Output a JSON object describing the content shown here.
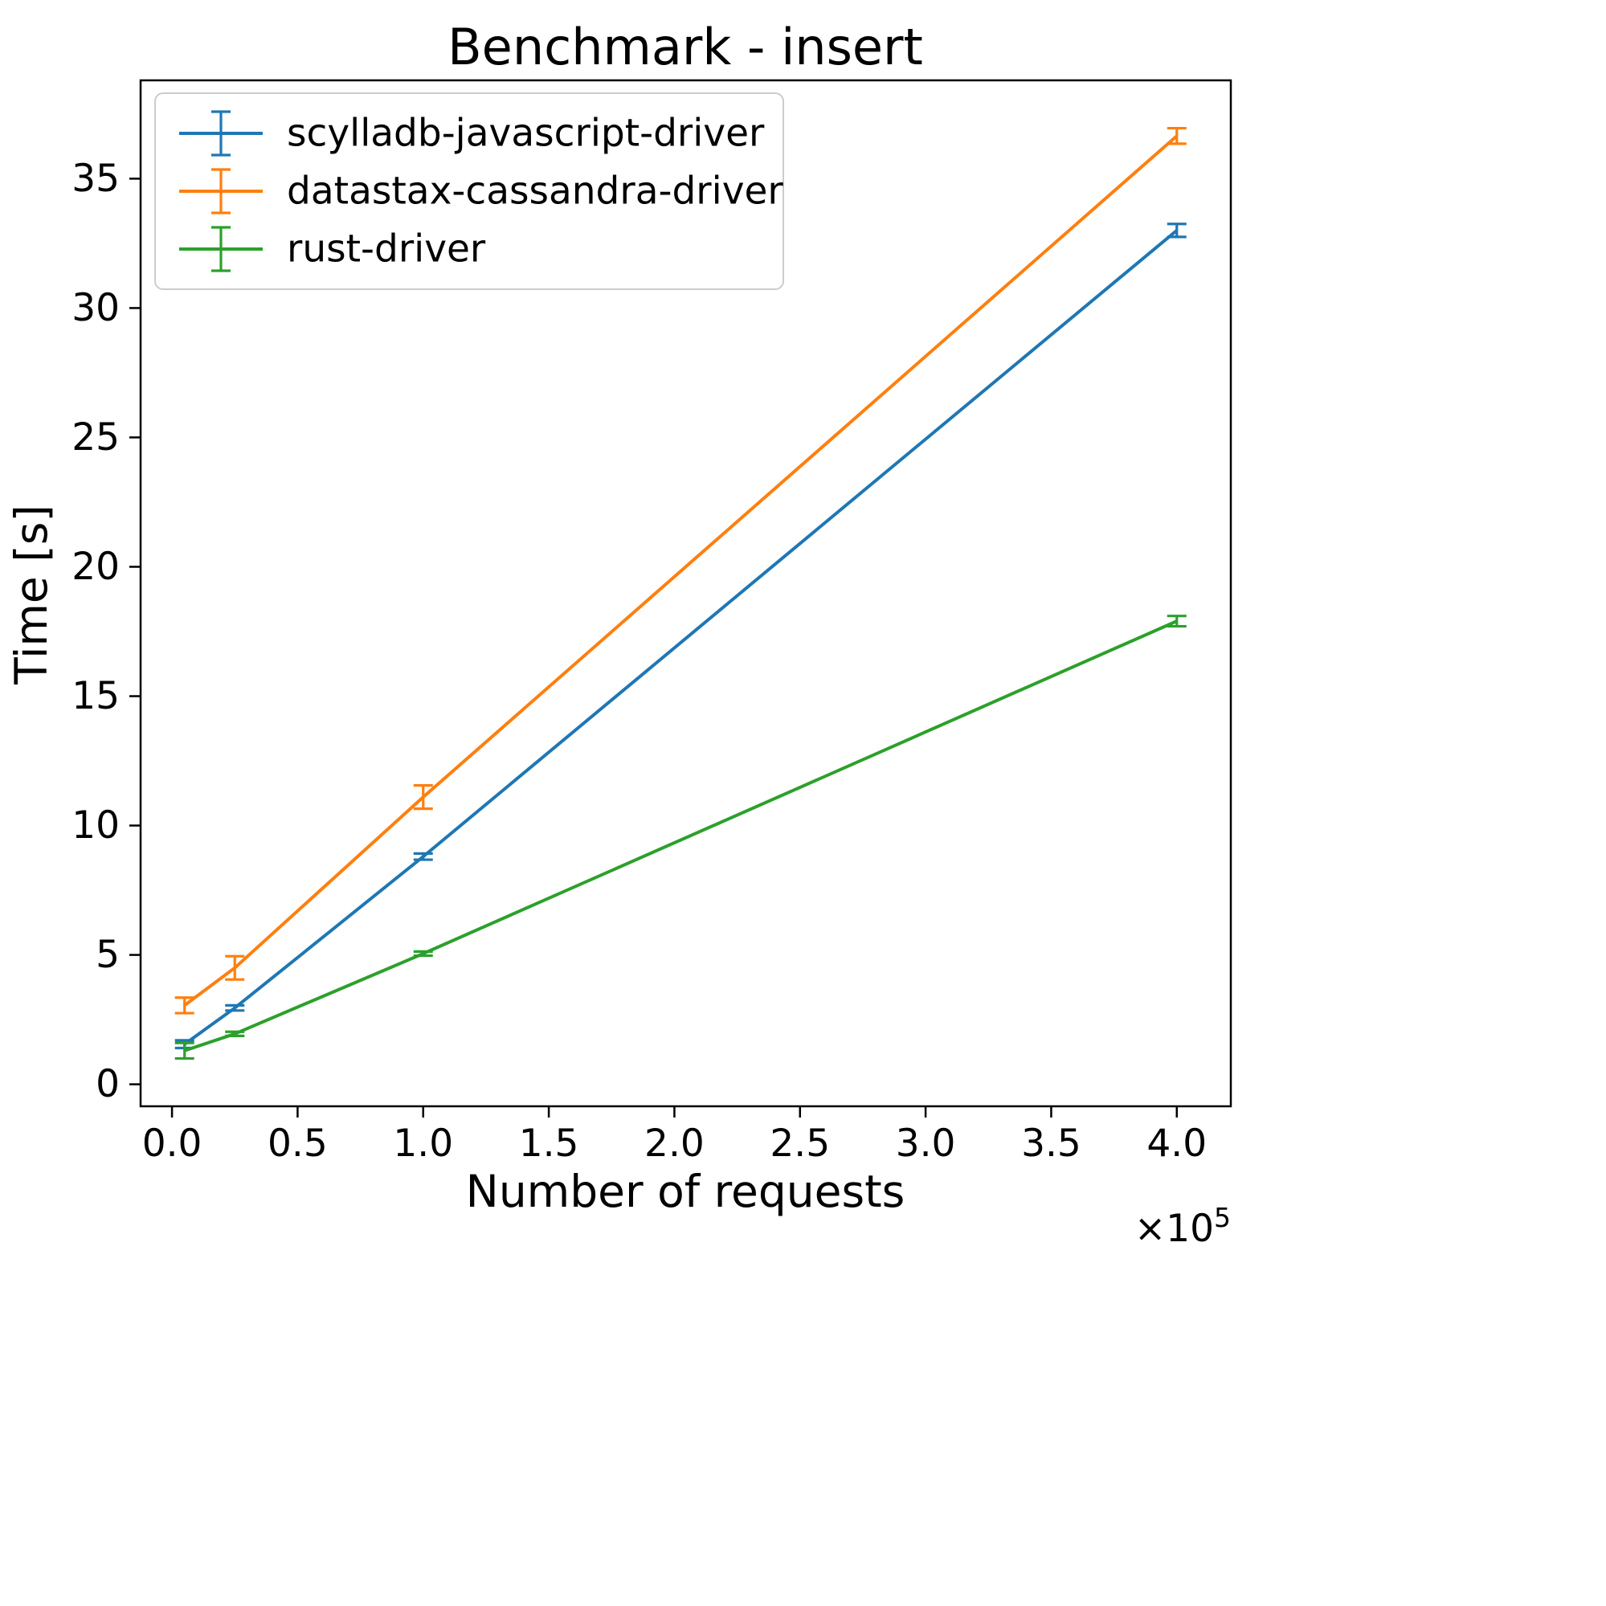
{
  "chart_data": {
    "type": "line",
    "title": "Benchmark - insert",
    "xlabel": "Number of requests",
    "ylabel": "Time [s]",
    "x_offset": {
      "base": "×10",
      "exp": "5"
    },
    "x": [
      5000,
      25000,
      100000,
      400000
    ],
    "series": [
      {
        "name": "scylladb-javascript-driver",
        "color": "#1f77b4",
        "values": [
          1.55,
          2.95,
          8.8,
          33.0
        ],
        "errors": [
          0.15,
          0.1,
          0.12,
          0.25
        ]
      },
      {
        "name": "datastax-cassandra-driver",
        "color": "#ff7f0e",
        "values": [
          3.05,
          4.5,
          11.1,
          36.65
        ],
        "errors": [
          0.3,
          0.45,
          0.45,
          0.3
        ]
      },
      {
        "name": "rust-driver",
        "color": "#2ca02c",
        "values": [
          1.3,
          1.95,
          5.05,
          17.9
        ],
        "errors": [
          0.3,
          0.08,
          0.08,
          0.2
        ]
      }
    ],
    "xticks": [
      0,
      50000,
      100000,
      150000,
      200000,
      250000,
      300000,
      350000,
      400000
    ],
    "xtick_labels": [
      "0.0",
      "0.5",
      "1.0",
      "1.5",
      "2.0",
      "2.5",
      "3.0",
      "3.5",
      "4.0"
    ],
    "yticks": [
      0,
      5,
      10,
      15,
      20,
      25,
      30,
      35
    ],
    "ytick_labels": [
      "0",
      "5",
      "10",
      "15",
      "20",
      "25",
      "30",
      "35"
    ],
    "xlim": [
      -12500,
      421500
    ],
    "ylim": [
      -0.85,
      38.8
    ],
    "grid": false,
    "legend_position": "upper left"
  }
}
